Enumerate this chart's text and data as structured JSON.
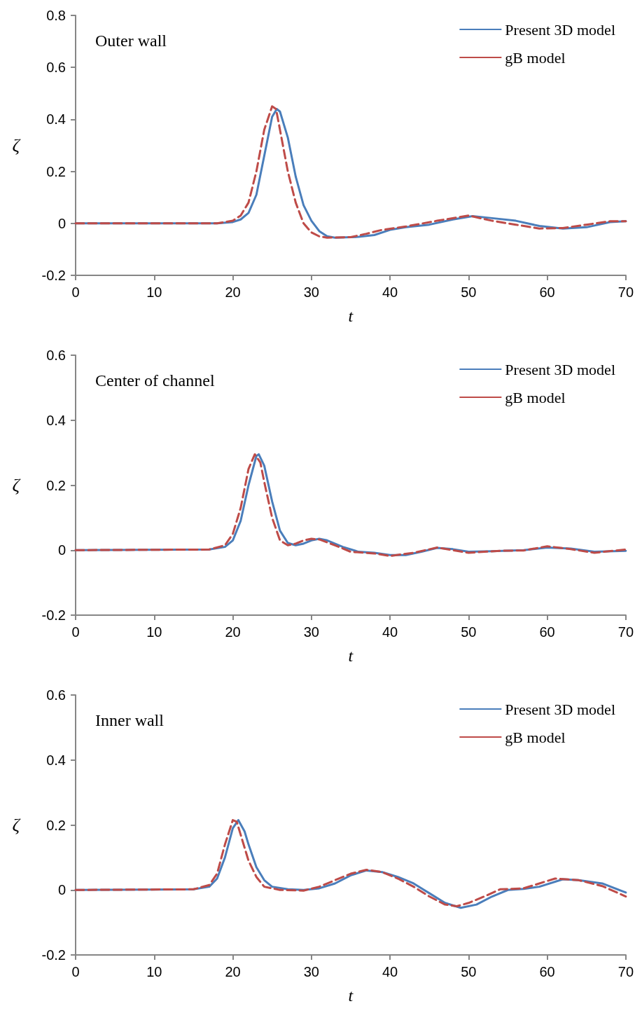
{
  "chart_data": [
    {
      "type": "line",
      "xlabel": "t",
      "ylabel": "ζ",
      "annotations": [
        "Outer wall"
      ],
      "xlim": [
        0,
        70
      ],
      "xticks": [
        0,
        10,
        20,
        30,
        40,
        50,
        60,
        70
      ],
      "ylim": [
        -0.2,
        0.8
      ],
      "yticks": [
        -0.2,
        0,
        0.2,
        0.4,
        0.6,
        0.8
      ],
      "grid": false,
      "legend": "top right",
      "marker": "none",
      "series": [
        {
          "name": "Present 3D model",
          "color": "#4a7ebb",
          "line_style": "solid",
          "x": [
            0,
            18,
            20,
            21,
            22,
            23,
            24,
            25,
            25.6,
            26,
            27,
            28,
            29,
            30,
            31,
            32,
            33,
            36,
            38,
            40,
            42,
            45,
            48,
            50.5,
            53,
            56,
            59,
            62,
            65,
            68,
            70
          ],
          "values": [
            0,
            0,
            0.005,
            0.015,
            0.04,
            0.11,
            0.26,
            0.41,
            0.44,
            0.43,
            0.33,
            0.18,
            0.07,
            0.01,
            -0.03,
            -0.05,
            -0.055,
            -0.052,
            -0.045,
            -0.025,
            -0.015,
            -0.005,
            0.015,
            0.028,
            0.02,
            0.01,
            -0.01,
            -0.02,
            -0.015,
            0.005,
            0.008
          ]
        },
        {
          "name": "gB model",
          "color": "#be4b48",
          "line_style": "dashed",
          "x": [
            0,
            18,
            20,
            21,
            22,
            23,
            24,
            25,
            25.5,
            26,
            27,
            28,
            29,
            30,
            31,
            32,
            35,
            37,
            39,
            42,
            46,
            50,
            53,
            56,
            59,
            62,
            65,
            68,
            70
          ],
          "values": [
            0,
            0,
            0.01,
            0.03,
            0.08,
            0.2,
            0.36,
            0.45,
            0.44,
            0.36,
            0.2,
            0.08,
            0,
            -0.035,
            -0.05,
            -0.055,
            -0.053,
            -0.04,
            -0.025,
            -0.012,
            0.01,
            0.03,
            0.01,
            -0.005,
            -0.02,
            -0.018,
            -0.005,
            0.008,
            0.008
          ]
        }
      ]
    },
    {
      "type": "line",
      "xlabel": "t",
      "ylabel": "ζ",
      "annotations": [
        "Center of channel"
      ],
      "xlim": [
        0,
        70
      ],
      "xticks": [
        0,
        10,
        20,
        30,
        40,
        50,
        60,
        70
      ],
      "ylim": [
        -0.2,
        0.6
      ],
      "yticks": [
        -0.2,
        0,
        0.2,
        0.4,
        0.6
      ],
      "grid": false,
      "legend": "top right",
      "marker": "none",
      "series": [
        {
          "name": "Present 3D model",
          "color": "#4a7ebb",
          "line_style": "solid",
          "x": [
            0,
            17,
            19,
            20,
            21,
            22,
            23,
            23.3,
            24,
            25,
            26,
            27,
            28,
            29,
            30,
            31,
            32,
            34,
            36,
            38,
            40,
            42,
            44,
            46,
            48,
            50,
            53,
            57,
            60,
            63,
            66,
            70
          ],
          "values": [
            0,
            0.002,
            0.01,
            0.03,
            0.09,
            0.2,
            0.29,
            0.295,
            0.26,
            0.15,
            0.06,
            0.022,
            0.015,
            0.02,
            0.03,
            0.035,
            0.03,
            0.01,
            -0.005,
            -0.008,
            -0.015,
            -0.015,
            -0.005,
            0.007,
            0.003,
            -0.005,
            -0.003,
            0,
            0.008,
            0.005,
            -0.005,
            -0.002
          ]
        },
        {
          "name": "gB model",
          "color": "#be4b48",
          "line_style": "dashed",
          "x": [
            0,
            17,
            19,
            20,
            21,
            22,
            22.8,
            23.5,
            24,
            25,
            26,
            27,
            28,
            29,
            30,
            31,
            33,
            35,
            38,
            40,
            43,
            46,
            48,
            50,
            54,
            57,
            60,
            63,
            66,
            70
          ],
          "values": [
            0,
            0.002,
            0.015,
            0.05,
            0.13,
            0.25,
            0.295,
            0.27,
            0.21,
            0.1,
            0.03,
            0.015,
            0.02,
            0.03,
            0.035,
            0.033,
            0.015,
            -0.005,
            -0.01,
            -0.018,
            -0.008,
            0.008,
            0,
            -0.008,
            -0.002,
            -0.001,
            0.012,
            0.003,
            -0.008,
            0.002
          ]
        }
      ]
    },
    {
      "type": "line",
      "xlabel": "t",
      "ylabel": "ζ",
      "annotations": [
        "Inner wall"
      ],
      "xlim": [
        0,
        70
      ],
      "xticks": [
        0,
        10,
        20,
        30,
        40,
        50,
        60,
        70
      ],
      "ylim": [
        -0.2,
        0.6
      ],
      "yticks": [
        -0.2,
        0,
        0.2,
        0.4,
        0.6
      ],
      "grid": false,
      "legend": "top right",
      "marker": "none",
      "series": [
        {
          "name": "Present 3D model",
          "color": "#4a7ebb",
          "line_style": "solid",
          "x": [
            0,
            15,
            17,
            18,
            19,
            20,
            20.7,
            21.5,
            22,
            23,
            24,
            25,
            27,
            29,
            31,
            33,
            35,
            37,
            39,
            41,
            43,
            45,
            47,
            49,
            51,
            53,
            55,
            57,
            59,
            62,
            64,
            67,
            70
          ],
          "values": [
            0,
            0.002,
            0.01,
            0.035,
            0.1,
            0.19,
            0.215,
            0.18,
            0.14,
            0.07,
            0.03,
            0.01,
            0.002,
            0,
            0.005,
            0.02,
            0.045,
            0.06,
            0.055,
            0.04,
            0.02,
            -0.01,
            -0.04,
            -0.055,
            -0.045,
            -0.02,
            0,
            0.003,
            0.01,
            0.033,
            0.03,
            0.02,
            -0.008
          ]
        },
        {
          "name": "gB model",
          "color": "#be4b48",
          "line_style": "dashed",
          "x": [
            0,
            15,
            17,
            18,
            19,
            20,
            20.5,
            21,
            22,
            23,
            24,
            26,
            29,
            31,
            33,
            35,
            37,
            39,
            41,
            43,
            45,
            47,
            48.5,
            50,
            52,
            54,
            57,
            59,
            61,
            64,
            67,
            70
          ],
          "values": [
            0,
            0.002,
            0.015,
            0.05,
            0.14,
            0.215,
            0.21,
            0.17,
            0.09,
            0.04,
            0.01,
            0,
            -0.002,
            0.01,
            0.03,
            0.05,
            0.062,
            0.055,
            0.035,
            0.01,
            -0.02,
            -0.045,
            -0.05,
            -0.04,
            -0.02,
            0.002,
            0.005,
            0.02,
            0.035,
            0.03,
            0.012,
            -0.02
          ]
        }
      ]
    }
  ]
}
